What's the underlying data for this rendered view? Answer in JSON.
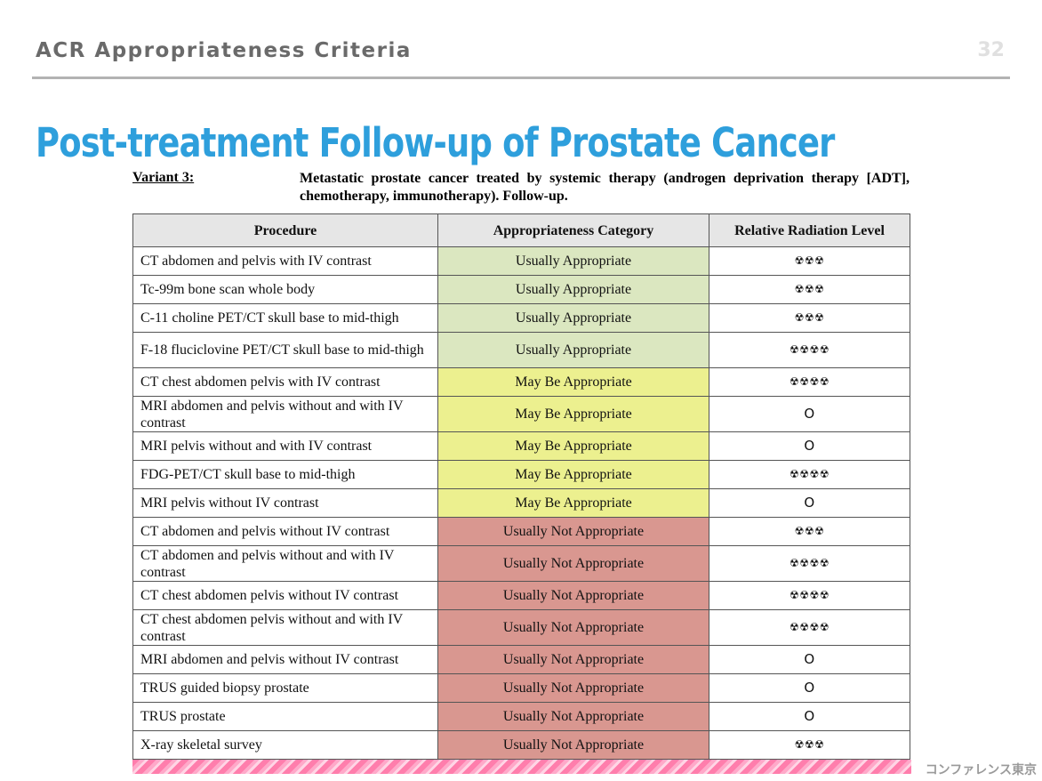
{
  "header": {
    "title": "ACR Appropriateness Criteria",
    "page_number": "32"
  },
  "slide_title": "Post-treatment Follow-up of Prostate Cancer",
  "variant": {
    "label": "Variant 3:",
    "description": "Metastatic prostate cancer treated by systemic therapy (androgen deprivation therapy [ADT], chemotherapy, immunotherapy). Follow-up."
  },
  "colors": {
    "usually_appropriate": "#dbe7c0",
    "may_be_appropriate": "#ecf08f",
    "usually_not_appropriate": "#d99790",
    "title_blue": "#2e9fdc"
  },
  "table": {
    "headers": [
      "Procedure",
      "Appropriateness Category",
      "Relative Radiation Level"
    ],
    "rows": [
      {
        "procedure": "CT abdomen and pelvis with IV contrast",
        "category": "Usually Appropriate",
        "level": "usually_appropriate",
        "radiation": "☢☢☢"
      },
      {
        "procedure": "Tc-99m bone scan whole body",
        "category": "Usually Appropriate",
        "level": "usually_appropriate",
        "radiation": "☢☢☢"
      },
      {
        "procedure": "C-11 choline PET/CT skull base to mid-thigh",
        "category": "Usually Appropriate",
        "level": "usually_appropriate",
        "radiation": "☢☢☢"
      },
      {
        "procedure": "F-18 fluciclovine PET/CT skull base to mid-thigh",
        "category": "Usually Appropriate",
        "level": "usually_appropriate",
        "radiation": "☢☢☢☢",
        "tall": true
      },
      {
        "procedure": "CT chest abdomen pelvis with IV contrast",
        "category": "May Be Appropriate",
        "level": "may_be_appropriate",
        "radiation": "☢☢☢☢"
      },
      {
        "procedure": "MRI abdomen and pelvis without and with IV contrast",
        "category": "May Be Appropriate",
        "level": "may_be_appropriate",
        "radiation": "O",
        "tall": true
      },
      {
        "procedure": "MRI pelvis without and with IV contrast",
        "category": "May Be Appropriate",
        "level": "may_be_appropriate",
        "radiation": "O"
      },
      {
        "procedure": "FDG-PET/CT skull base to mid-thigh",
        "category": "May Be Appropriate",
        "level": "may_be_appropriate",
        "radiation": "☢☢☢☢"
      },
      {
        "procedure": "MRI pelvis without IV contrast",
        "category": "May Be Appropriate",
        "level": "may_be_appropriate",
        "radiation": "O"
      },
      {
        "procedure": "CT abdomen and pelvis without IV contrast",
        "category": "Usually Not Appropriate",
        "level": "usually_not_appropriate",
        "radiation": "☢☢☢"
      },
      {
        "procedure": "CT abdomen and pelvis without and with IV contrast",
        "category": "Usually Not Appropriate",
        "level": "usually_not_appropriate",
        "radiation": "☢☢☢☢",
        "tall": true
      },
      {
        "procedure": "CT chest abdomen pelvis without IV contrast",
        "category": "Usually Not Appropriate",
        "level": "usually_not_appropriate",
        "radiation": "☢☢☢☢"
      },
      {
        "procedure": "CT chest abdomen pelvis without and with IV contrast",
        "category": "Usually Not Appropriate",
        "level": "usually_not_appropriate",
        "radiation": "☢☢☢☢",
        "tall": true
      },
      {
        "procedure": "MRI abdomen and pelvis without IV contrast",
        "category": "Usually Not Appropriate",
        "level": "usually_not_appropriate",
        "radiation": "O"
      },
      {
        "procedure": "TRUS guided biopsy prostate",
        "category": "Usually Not Appropriate",
        "level": "usually_not_appropriate",
        "radiation": "O"
      },
      {
        "procedure": "TRUS prostate",
        "category": "Usually Not Appropriate",
        "level": "usually_not_appropriate",
        "radiation": "O"
      },
      {
        "procedure": "X-ray skeletal survey",
        "category": "Usually Not Appropriate",
        "level": "usually_not_appropriate",
        "radiation": "☢☢☢"
      }
    ]
  },
  "watermark": "コンファレンス東京"
}
